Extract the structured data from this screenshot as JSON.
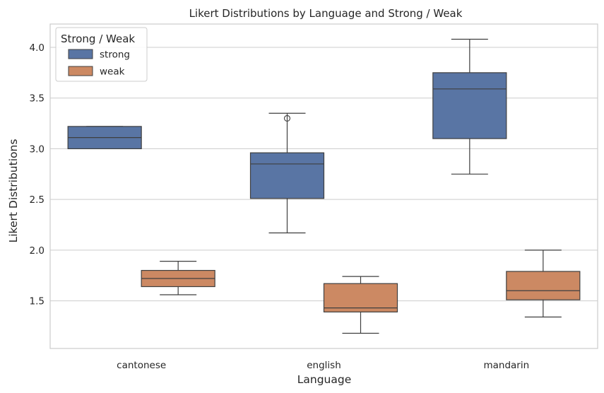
{
  "chart_data": {
    "type": "box",
    "title": "Likert Distributions by Language and Strong / Weak",
    "xlabel": "Language",
    "ylabel": "Likert Distributions",
    "categories": [
      "cantonese",
      "english",
      "mandarin"
    ],
    "yticks": [
      "1.5",
      "2.0",
      "2.5",
      "3.0",
      "3.5",
      "4.0"
    ],
    "ytick_values": [
      1.5,
      2.0,
      2.5,
      3.0,
      3.5,
      4.0
    ],
    "ylim": [
      1.03,
      4.23
    ],
    "grid": "horizontal",
    "legend": {
      "title": "Strong / Weak",
      "placement": "top-left",
      "entries": [
        {
          "name": "strong",
          "color": "#5975a4"
        },
        {
          "name": "weak",
          "color": "#cc8963"
        }
      ]
    },
    "series": [
      {
        "name": "strong",
        "color": "#5975a4",
        "boxes": [
          {
            "category": "cantonese",
            "whisker_low": 3.0,
            "q1": 3.0,
            "median": 3.11,
            "q3": 3.22,
            "whisker_high": 3.22,
            "outliers": []
          },
          {
            "category": "english",
            "whisker_low": 2.17,
            "q1": 2.51,
            "median": 2.85,
            "q3": 2.96,
            "whisker_high": 3.35,
            "outliers": [
              3.3
            ]
          },
          {
            "category": "mandarin",
            "whisker_low": 2.75,
            "q1": 3.1,
            "median": 3.59,
            "q3": 3.75,
            "whisker_high": 4.08,
            "outliers": []
          }
        ]
      },
      {
        "name": "weak",
        "color": "#cc8963",
        "boxes": [
          {
            "category": "cantonese",
            "whisker_low": 1.56,
            "q1": 1.64,
            "median": 1.72,
            "q3": 1.8,
            "whisker_high": 1.89,
            "outliers": []
          },
          {
            "category": "english",
            "whisker_low": 1.18,
            "q1": 1.39,
            "median": 1.43,
            "q3": 1.67,
            "whisker_high": 1.74,
            "outliers": []
          },
          {
            "category": "mandarin",
            "whisker_low": 1.34,
            "q1": 1.51,
            "median": 1.6,
            "q3": 1.79,
            "whisker_high": 2.0,
            "outliers": []
          }
        ]
      }
    ]
  }
}
